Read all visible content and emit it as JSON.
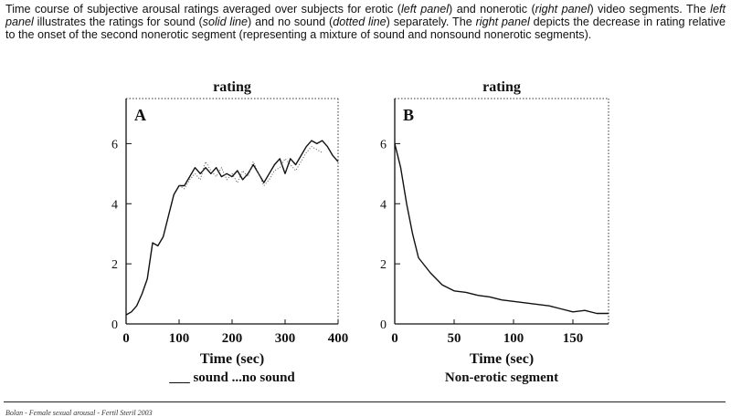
{
  "caption": {
    "p1": "Time course of subjective arousal ratings averaged over subjects for erotic (",
    "e1": "left panel",
    "p2": ") and nonerotic (",
    "e2": "right panel",
    "p3": ") video segments. The ",
    "e3": "left panel",
    "p4": " illustrates the ratings for sound (",
    "e4": "solid line",
    "p5": ") and no sound (",
    "e5": "dotted line",
    "p6": ") separately. The ",
    "e6": "right panel",
    "p7": " depicts the decrease in rating relative to the onset of the second nonerotic segment (representing a mixture of sound and nonsound nonerotic segments)."
  },
  "footer": "Bolan - Female sexual arousal - Fertil Steril 2003",
  "chart_data": [
    {
      "type": "line",
      "panel_letter": "A",
      "title": "rating",
      "xlabel": "Time (sec)",
      "xlabel_sub": "___ sound   ...no sound",
      "ylabel": "",
      "xlim": [
        0,
        400
      ],
      "ylim": [
        0,
        7.5
      ],
      "xticks": [
        0,
        100,
        200,
        300,
        400
      ],
      "yticks": [
        0,
        2,
        4,
        6
      ],
      "series": [
        {
          "name": "sound",
          "style": "solid",
          "x": [
            0,
            10,
            20,
            30,
            40,
            50,
            60,
            70,
            80,
            90,
            100,
            110,
            120,
            130,
            140,
            150,
            160,
            170,
            180,
            190,
            200,
            210,
            220,
            230,
            240,
            250,
            260,
            270,
            280,
            290,
            300,
            310,
            320,
            330,
            340,
            350,
            360,
            370,
            380,
            390,
            400
          ],
          "values": [
            0.3,
            0.4,
            0.6,
            1.0,
            1.5,
            2.7,
            2.6,
            2.9,
            3.6,
            4.3,
            4.6,
            4.6,
            4.9,
            5.2,
            5.0,
            5.2,
            5.0,
            5.2,
            4.9,
            5.0,
            4.9,
            5.1,
            4.8,
            5.0,
            5.3,
            5.0,
            4.7,
            5.0,
            5.3,
            5.5,
            5.0,
            5.5,
            5.3,
            5.6,
            5.9,
            6.1,
            6.0,
            6.1,
            5.9,
            5.6,
            5.4
          ]
        },
        {
          "name": "no sound",
          "style": "dotted",
          "x": [
            100,
            110,
            120,
            130,
            140,
            150,
            160,
            170,
            180,
            190,
            200,
            210,
            220,
            230,
            240,
            250,
            260,
            270,
            280,
            290,
            300,
            310,
            320,
            330,
            340,
            350,
            360,
            370
          ],
          "values": [
            4.6,
            4.5,
            4.8,
            5.0,
            4.8,
            5.4,
            5.1,
            4.9,
            5.2,
            4.8,
            5.0,
            4.7,
            5.1,
            4.9,
            5.4,
            5.0,
            4.6,
            4.8,
            5.1,
            5.2,
            5.5,
            5.3,
            5.1,
            5.4,
            5.7,
            5.9,
            5.8,
            5.7
          ]
        }
      ]
    },
    {
      "type": "line",
      "panel_letter": "B",
      "title": "rating",
      "xlabel": "Time (sec)",
      "xlabel_sub": "Non-erotic segment",
      "ylabel": "",
      "xlim": [
        0,
        180
      ],
      "ylim": [
        0,
        7.5
      ],
      "xticks": [
        0,
        50,
        100,
        150
      ],
      "yticks": [
        0,
        2,
        4,
        6
      ],
      "series": [
        {
          "name": "rating",
          "style": "solid",
          "x": [
            0,
            5,
            10,
            15,
            20,
            30,
            40,
            50,
            60,
            70,
            80,
            90,
            100,
            110,
            120,
            130,
            140,
            150,
            160,
            170,
            180
          ],
          "values": [
            6.0,
            5.2,
            4.0,
            3.0,
            2.2,
            1.7,
            1.3,
            1.1,
            1.05,
            0.95,
            0.9,
            0.8,
            0.75,
            0.7,
            0.65,
            0.6,
            0.5,
            0.4,
            0.45,
            0.35,
            0.35
          ]
        }
      ]
    }
  ]
}
